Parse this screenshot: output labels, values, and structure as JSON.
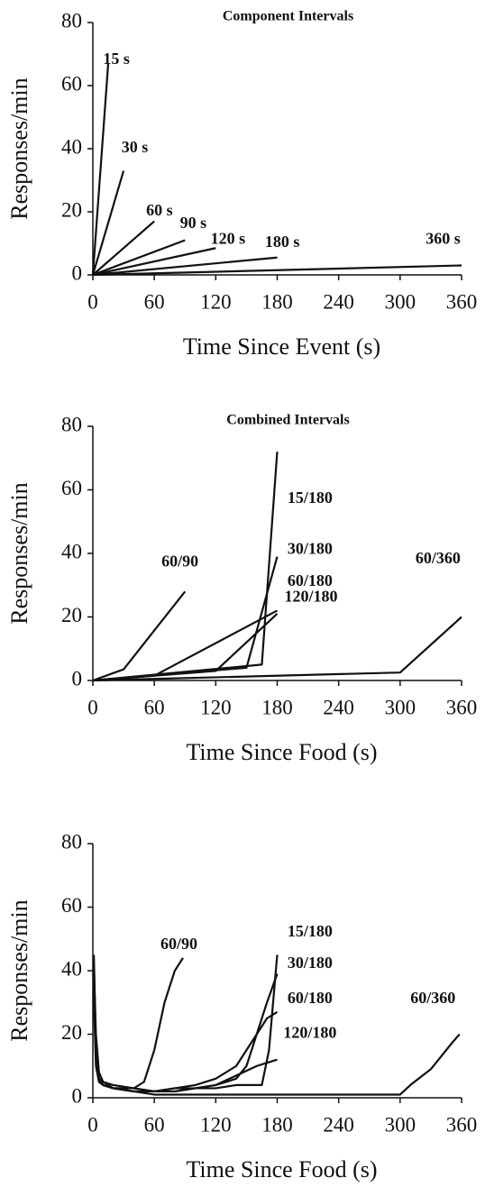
{
  "chart_data": [
    {
      "type": "line",
      "title": "Component Intervals",
      "y_label": "Responses/min",
      "x_label": "Time Since Event (s)",
      "xlim": [
        0,
        360
      ],
      "ylim": [
        0,
        80
      ],
      "xticks": [
        0,
        60,
        120,
        180,
        240,
        300,
        360
      ],
      "yticks": [
        0,
        20,
        40,
        60,
        80
      ],
      "series": [
        {
          "name": "15 s",
          "color": "#111111",
          "x": [
            0,
            15
          ],
          "values": [
            0,
            67
          ]
        },
        {
          "name": "30 s",
          "color": "#111111",
          "x": [
            0,
            30
          ],
          "values": [
            0,
            33
          ]
        },
        {
          "name": "60 s",
          "color": "#111111",
          "x": [
            0,
            60
          ],
          "values": [
            0,
            17
          ]
        },
        {
          "name": "90 s",
          "color": "#111111",
          "x": [
            0,
            90
          ],
          "values": [
            0,
            11
          ]
        },
        {
          "name": "120 s",
          "color": "#111111",
          "x": [
            0,
            120
          ],
          "values": [
            0,
            8.5
          ]
        },
        {
          "name": "180 s",
          "color": "#111111",
          "x": [
            0,
            180
          ],
          "values": [
            0,
            5.5
          ]
        },
        {
          "name": "360 s",
          "color": "#111111",
          "x": [
            0,
            360
          ],
          "values": [
            0,
            3
          ]
        }
      ]
    },
    {
      "type": "line",
      "title": "Combined Intervals",
      "y_label": "Responses/min",
      "x_label": "Time Since Food (s)",
      "xlim": [
        0,
        360
      ],
      "ylim": [
        0,
        80
      ],
      "xticks": [
        0,
        60,
        120,
        180,
        240,
        300,
        360
      ],
      "yticks": [
        0,
        20,
        40,
        60,
        80
      ],
      "series": [
        {
          "name": "60/90",
          "color": "#111111",
          "x": [
            0,
            30,
            90
          ],
          "values": [
            0,
            3.5,
            28
          ]
        },
        {
          "name": "15/180",
          "color": "#111111",
          "x": [
            0,
            165,
            180
          ],
          "values": [
            0,
            5,
            72
          ]
        },
        {
          "name": "30/180",
          "color": "#111111",
          "x": [
            0,
            150,
            180
          ],
          "values": [
            0,
            4,
            39
          ]
        },
        {
          "name": "60/180",
          "color": "#111111",
          "x": [
            0,
            60,
            180
          ],
          "values": [
            0,
            1.5,
            22
          ]
        },
        {
          "name": "120/180",
          "color": "#111111",
          "x": [
            0,
            120,
            180
          ],
          "values": [
            0,
            3,
            21
          ]
        },
        {
          "name": "60/360",
          "color": "#111111",
          "x": [
            0,
            300,
            360
          ],
          "values": [
            0,
            2.5,
            20
          ]
        }
      ]
    },
    {
      "type": "line",
      "y_label": "Responses/min",
      "x_label": "Time Since Food (s)",
      "xlim": [
        0,
        360
      ],
      "ylim": [
        0,
        80
      ],
      "xticks": [
        0,
        60,
        120,
        180,
        240,
        300,
        360
      ],
      "yticks": [
        0,
        20,
        40,
        60,
        80
      ],
      "series": [
        {
          "name": "60/90",
          "color": "#111111",
          "x": [
            1,
            3,
            6,
            10,
            15,
            20,
            30,
            40,
            50,
            60,
            70,
            80,
            88
          ],
          "values": [
            42,
            20,
            8,
            5,
            4,
            3,
            3,
            3,
            5,
            15,
            30,
            40,
            44
          ]
        },
        {
          "name": "15/180",
          "color": "#111111",
          "x": [
            1,
            3,
            6,
            10,
            20,
            40,
            60,
            80,
            100,
            120,
            140,
            155,
            165,
            172,
            180
          ],
          "values": [
            40,
            15,
            6,
            4,
            3,
            2,
            2,
            2,
            3,
            3,
            4,
            4,
            4,
            15,
            45
          ]
        },
        {
          "name": "30/180",
          "color": "#111111",
          "x": [
            1,
            3,
            6,
            10,
            20,
            40,
            60,
            80,
            100,
            120,
            140,
            150,
            160,
            170,
            180
          ],
          "values": [
            38,
            12,
            6,
            4,
            3,
            3,
            2,
            3,
            3,
            4,
            6,
            10,
            20,
            30,
            39
          ]
        },
        {
          "name": "60/180",
          "color": "#111111",
          "x": [
            1,
            3,
            6,
            10,
            20,
            40,
            60,
            80,
            100,
            120,
            140,
            160,
            170,
            180
          ],
          "values": [
            35,
            14,
            6,
            5,
            4,
            3,
            2,
            3,
            4,
            6,
            10,
            20,
            25,
            27
          ]
        },
        {
          "name": "120/180",
          "color": "#111111",
          "x": [
            1,
            3,
            6,
            10,
            20,
            40,
            60,
            80,
            100,
            120,
            140,
            160,
            170,
            180
          ],
          "values": [
            30,
            10,
            5,
            4,
            3,
            2,
            2,
            2,
            3,
            4,
            7,
            10,
            11,
            12
          ]
        },
        {
          "name": "60/360",
          "color": "#111111",
          "x": [
            1,
            3,
            6,
            10,
            20,
            40,
            60,
            100,
            150,
            200,
            250,
            300,
            310,
            330,
            350,
            358
          ],
          "values": [
            45,
            12,
            5,
            4,
            3,
            2,
            1,
            1,
            1,
            1,
            1,
            1,
            4,
            9,
            17,
            20
          ]
        }
      ]
    }
  ]
}
